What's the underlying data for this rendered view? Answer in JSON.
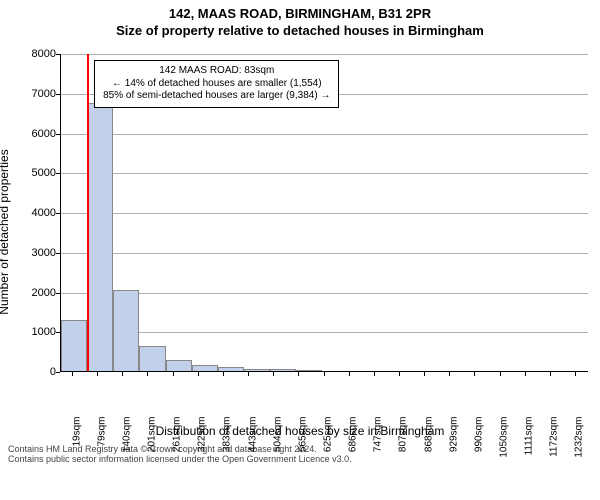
{
  "title_main": "142, MAAS ROAD, BIRMINGHAM, B31 2PR",
  "title_sub": "Size of property relative to detached houses in Birmingham",
  "ylabel": "Number of detached properties",
  "xlabel": "Distribution of detached houses by size in Birmingham",
  "footer1": "Contains HM Land Registry data © Crown copyright and database right 2024.",
  "footer2": "Contains public sector information licensed under the Open Government Licence v3.0.",
  "chart": {
    "type": "histogram",
    "ylim": [
      0,
      8000
    ],
    "ytick_step": 1000,
    "yticks": [
      0,
      1000,
      2000,
      3000,
      4000,
      5000,
      6000,
      7000,
      8000
    ],
    "categories": [
      "19sqm",
      "79sqm",
      "140sqm",
      "201sqm",
      "261sqm",
      "322sqm",
      "383sqm",
      "443sqm",
      "504sqm",
      "565sqm",
      "625sqm",
      "686sqm",
      "747sqm",
      "807sqm",
      "868sqm",
      "929sqm",
      "990sqm",
      "1050sqm",
      "1111sqm",
      "1172sqm",
      "1232sqm"
    ],
    "values": [
      1280,
      6750,
      2050,
      640,
      280,
      150,
      90,
      60,
      45,
      35,
      0,
      0,
      0,
      0,
      0,
      0,
      0,
      0,
      0,
      0,
      0
    ],
    "bar_fill": "#c2d0ea",
    "bar_border": "#888888",
    "grid_color": "#b0b0b0",
    "background_color": "#ffffff",
    "marker_color": "#ff0000",
    "marker_category_index": 1,
    "marker_offset_in_bin": 0.08,
    "annotation": {
      "line1": "142 MAAS ROAD: 83sqm",
      "line2": "← 14% of detached houses are smaller (1,554)",
      "line3": "85% of semi-detached houses are larger (9,384) →",
      "border_color": "#000000",
      "background": "#ffffff",
      "fontsize": 10
    },
    "title_fontsize": 13,
    "label_fontsize": 12,
    "tick_fontsize": 10
  }
}
